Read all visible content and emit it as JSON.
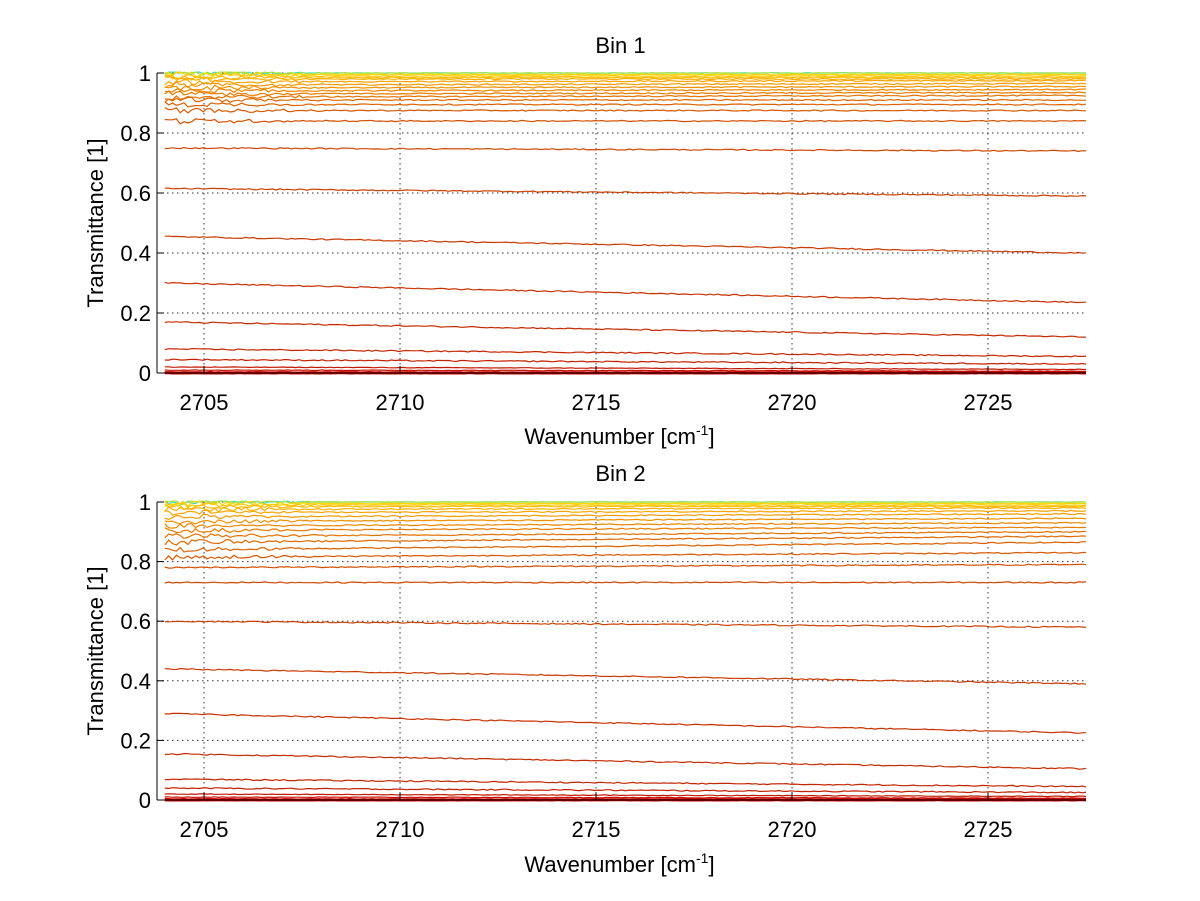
{
  "chart_data": [
    {
      "type": "line",
      "title": "Bin 1",
      "xlabel": {
        "main": "Wavenumber [cm",
        "sup": "-1",
        "tail": "]"
      },
      "ylabel": "Transmittance [1]",
      "xlim": [
        2703.8,
        2727.5
      ],
      "ylim": [
        0,
        1
      ],
      "xticks": [
        2705,
        2710,
        2715,
        2720,
        2725
      ],
      "yticks": [
        0,
        0.2,
        0.4,
        0.6,
        0.8,
        1
      ],
      "ytick_labels": [
        "0",
        "0.2",
        "0.4",
        "0.6",
        "0.8",
        "1"
      ],
      "grid": true,
      "x_range": [
        2704,
        2727.5
      ],
      "series": [
        {
          "start": 1.0,
          "end": 1.0,
          "color": "#33e0c8"
        },
        {
          "start": 1.0,
          "end": 1.0,
          "color": "#a8e040"
        },
        {
          "start": 0.995,
          "end": 0.995,
          "color": "#ffd400"
        },
        {
          "start": 0.99,
          "end": 0.99,
          "color": "#ffc800"
        },
        {
          "start": 0.985,
          "end": 0.985,
          "color": "#ffbc00"
        },
        {
          "start": 0.98,
          "end": 0.98,
          "color": "#ffb000"
        },
        {
          "start": 0.97,
          "end": 0.975,
          "color": "#f9a400"
        },
        {
          "start": 0.96,
          "end": 0.965,
          "color": "#f59a00"
        },
        {
          "start": 0.95,
          "end": 0.955,
          "color": "#f19000"
        },
        {
          "start": 0.94,
          "end": 0.945,
          "color": "#ec8600"
        },
        {
          "start": 0.93,
          "end": 0.935,
          "color": "#e87c00"
        },
        {
          "start": 0.92,
          "end": 0.925,
          "color": "#e47200"
        },
        {
          "start": 0.91,
          "end": 0.91,
          "color": "#e06800"
        },
        {
          "start": 0.895,
          "end": 0.895,
          "color": "#dc6000"
        },
        {
          "start": 0.875,
          "end": 0.875,
          "color": "#d85800"
        },
        {
          "start": 0.84,
          "end": 0.84,
          "color": "#d45000"
        },
        {
          "start": 0.75,
          "end": 0.74,
          "color": "#d04800"
        },
        {
          "start": 0.615,
          "end": 0.59,
          "color": "#cc4000"
        },
        {
          "start": 0.455,
          "end": 0.4,
          "color": "#ca3a00"
        },
        {
          "start": 0.3,
          "end": 0.235,
          "color": "#c83200"
        },
        {
          "start": 0.17,
          "end": 0.12,
          "color": "#c42c00"
        },
        {
          "start": 0.08,
          "end": 0.055,
          "color": "#c42600"
        },
        {
          "start": 0.045,
          "end": 0.03,
          "color": "#c42000"
        },
        {
          "start": 0.02,
          "end": 0.012,
          "color": "#c41800"
        },
        {
          "start": 0.01,
          "end": 0.006,
          "color": "#c81000"
        },
        {
          "start": 0.004,
          "end": 0.002,
          "color": "#cc0a00"
        },
        {
          "start": 0.0,
          "end": 0.0,
          "color": "#cc0000"
        }
      ]
    },
    {
      "type": "line",
      "title": "Bin 2",
      "xlabel": {
        "main": "Wavenumber [cm",
        "sup": "-1",
        "tail": "]"
      },
      "ylabel": "Transmittance [1]",
      "xlim": [
        2703.8,
        2727.5
      ],
      "ylim": [
        0,
        1
      ],
      "xticks": [
        2705,
        2710,
        2715,
        2720,
        2725
      ],
      "yticks": [
        0,
        0.2,
        0.4,
        0.6,
        0.8,
        1
      ],
      "ytick_labels": [
        "0",
        "0.2",
        "0.4",
        "0.6",
        "0.8",
        "1"
      ],
      "grid": true,
      "x_range": [
        2704,
        2727.5
      ],
      "series": [
        {
          "start": 1.0,
          "end": 1.0,
          "color": "#33e0c8"
        },
        {
          "start": 1.0,
          "end": 1.0,
          "color": "#a8e040"
        },
        {
          "start": 0.995,
          "end": 0.995,
          "color": "#ffd400"
        },
        {
          "start": 0.99,
          "end": 0.99,
          "color": "#ffc800"
        },
        {
          "start": 0.985,
          "end": 0.985,
          "color": "#ffbc00"
        },
        {
          "start": 0.975,
          "end": 0.98,
          "color": "#ffb000"
        },
        {
          "start": 0.965,
          "end": 0.97,
          "color": "#f9a400"
        },
        {
          "start": 0.95,
          "end": 0.96,
          "color": "#f59a00"
        },
        {
          "start": 0.935,
          "end": 0.945,
          "color": "#f19000"
        },
        {
          "start": 0.92,
          "end": 0.93,
          "color": "#ec8600"
        },
        {
          "start": 0.905,
          "end": 0.915,
          "color": "#e87c00"
        },
        {
          "start": 0.885,
          "end": 0.9,
          "color": "#e47200"
        },
        {
          "start": 0.865,
          "end": 0.885,
          "color": "#e06800"
        },
        {
          "start": 0.84,
          "end": 0.865,
          "color": "#dc6000"
        },
        {
          "start": 0.815,
          "end": 0.83,
          "color": "#d85800"
        },
        {
          "start": 0.78,
          "end": 0.79,
          "color": "#d45000"
        },
        {
          "start": 0.73,
          "end": 0.73,
          "color": "#d04800"
        },
        {
          "start": 0.6,
          "end": 0.58,
          "color": "#cc4000"
        },
        {
          "start": 0.44,
          "end": 0.39,
          "color": "#ca3a00"
        },
        {
          "start": 0.29,
          "end": 0.225,
          "color": "#c83200"
        },
        {
          "start": 0.155,
          "end": 0.105,
          "color": "#c42c00"
        },
        {
          "start": 0.07,
          "end": 0.045,
          "color": "#c42600"
        },
        {
          "start": 0.04,
          "end": 0.025,
          "color": "#c42000"
        },
        {
          "start": 0.02,
          "end": 0.012,
          "color": "#c41800"
        },
        {
          "start": 0.01,
          "end": 0.006,
          "color": "#c81000"
        },
        {
          "start": 0.004,
          "end": 0.002,
          "color": "#cc0a00"
        },
        {
          "start": 0.0,
          "end": 0.0,
          "color": "#cc0000"
        }
      ]
    }
  ]
}
